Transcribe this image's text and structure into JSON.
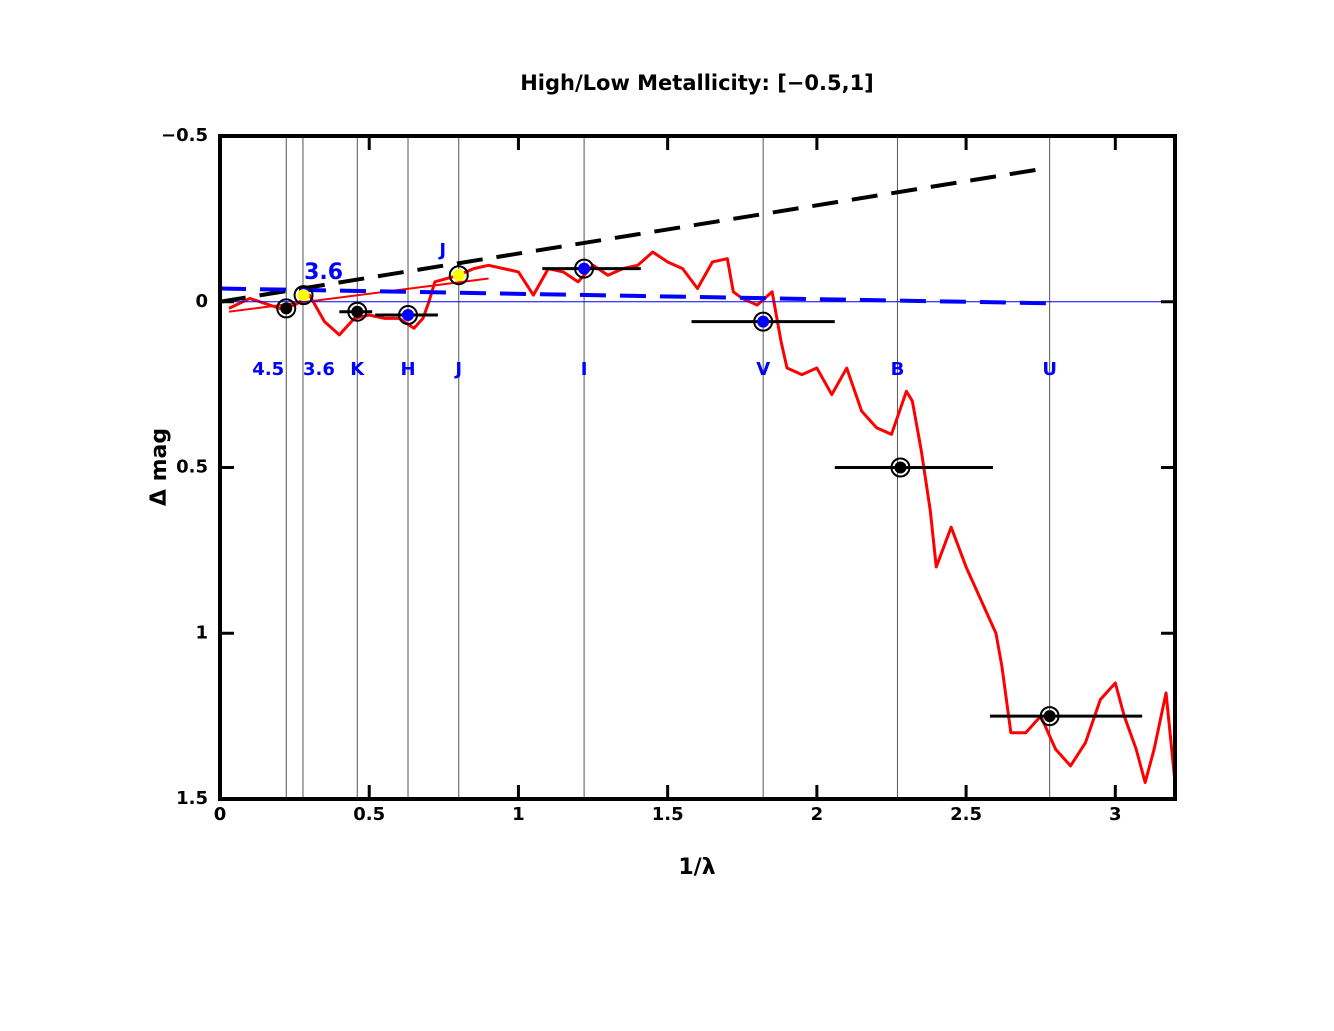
{
  "chart_data": {
    "type": "line",
    "title": "High/Low Metallicity: [−0.5,1]",
    "x_label": "1/λ",
    "y_label": "Δ mag",
    "xlim": [
      0,
      3.2
    ],
    "ylim": [
      -0.5,
      1.5
    ],
    "y_inverted": true,
    "xticks": [
      0,
      0.5,
      1,
      1.5,
      2,
      2.5,
      3
    ],
    "yticks": [
      {
        "value": -0.5,
        "label": "−0.5"
      },
      0,
      0.5,
      1,
      1.5
    ],
    "bands": {
      "names": [
        "4.5",
        "3.6",
        "K",
        "H",
        "J",
        "I",
        "V",
        "B",
        "U"
      ],
      "x": [
        0.222,
        0.278,
        0.46,
        0.63,
        0.8,
        1.22,
        1.82,
        2.27,
        2.78
      ],
      "color": "#0000ff",
      "line_color": "#555555"
    },
    "series": [
      {
        "color": "#ff0000",
        "width": 3,
        "dash": false,
        "x": [
          0.03,
          0.1,
          0.2,
          0.25,
          0.3,
          0.35,
          0.4,
          0.45,
          0.5,
          0.55,
          0.6,
          0.65,
          0.68,
          0.7,
          0.72,
          0.8,
          0.85,
          0.9,
          0.95,
          1.0,
          1.05,
          1.1,
          1.15,
          1.2,
          1.25,
          1.3,
          1.35,
          1.4,
          1.45,
          1.5,
          1.55,
          1.6,
          1.65,
          1.7,
          1.72,
          1.75,
          1.8,
          1.85,
          1.88,
          1.9,
          1.95,
          2.0,
          2.05,
          2.1,
          2.15,
          2.2,
          2.25,
          2.3,
          2.32,
          2.35,
          2.38,
          2.4,
          2.45,
          2.5,
          2.55,
          2.6,
          2.62,
          2.65,
          2.7,
          2.75,
          2.8,
          2.85,
          2.9,
          2.95,
          3.0,
          3.03,
          3.07,
          3.1,
          3.13,
          3.17,
          3.2
        ],
        "values": [
          0.02,
          -0.01,
          0.02,
          0.01,
          -0.02,
          0.06,
          0.1,
          0.05,
          0.04,
          0.05,
          0.05,
          0.08,
          0.05,
          0.0,
          -0.06,
          -0.08,
          -0.1,
          -0.11,
          -0.1,
          -0.09,
          -0.02,
          -0.1,
          -0.09,
          -0.06,
          -0.11,
          -0.08,
          -0.1,
          -0.11,
          -0.15,
          -0.12,
          -0.1,
          -0.04,
          -0.12,
          -0.13,
          -0.03,
          -0.01,
          0.01,
          -0.03,
          0.12,
          0.2,
          0.22,
          0.2,
          0.28,
          0.2,
          0.33,
          0.38,
          0.4,
          0.27,
          0.3,
          0.45,
          0.63,
          0.8,
          0.68,
          0.8,
          0.9,
          1.0,
          1.1,
          1.3,
          1.3,
          1.25,
          1.35,
          1.4,
          1.33,
          1.2,
          1.15,
          1.25,
          1.35,
          1.45,
          1.35,
          1.18,
          1.45
        ]
      },
      {
        "color": "#ff0000",
        "width": 2,
        "dash": false,
        "x": [
          0.03,
          0.9
        ],
        "values": [
          0.03,
          -0.07
        ]
      },
      {
        "color": "#0000ff",
        "width": 1,
        "dash": false,
        "x": [
          0,
          3.2
        ],
        "values": [
          0,
          0
        ]
      },
      {
        "color": "#000000",
        "width": 4,
        "dash": true,
        "x": [
          0,
          2.75
        ],
        "values": [
          0,
          -0.4
        ]
      },
      {
        "color": "#0000ff",
        "width": 4,
        "dash": true,
        "x": [
          0,
          2.8
        ],
        "values": [
          -0.04,
          0.005
        ]
      }
    ],
    "points": {
      "x": [
        0.222,
        0.28,
        0.46,
        0.63,
        0.8,
        1.22,
        1.82,
        2.28,
        2.78
      ],
      "values": [
        0.02,
        -0.02,
        0.03,
        0.04,
        -0.08,
        -0.1,
        0.06,
        0.5,
        1.25
      ],
      "colors": [
        "#000000",
        "#ffff00",
        "#000000",
        "#0000ff",
        "#ffff00",
        "#0000ff",
        "#0000ff",
        "#000000",
        "#000000"
      ],
      "x_low": [
        null,
        null,
        0.4,
        0.52,
        null,
        1.08,
        1.58,
        2.06,
        2.58
      ],
      "x_high": [
        null,
        null,
        0.51,
        0.73,
        null,
        1.41,
        2.06,
        2.59,
        3.09
      ]
    },
    "annotations": [
      "3.6",
      "J"
    ]
  }
}
